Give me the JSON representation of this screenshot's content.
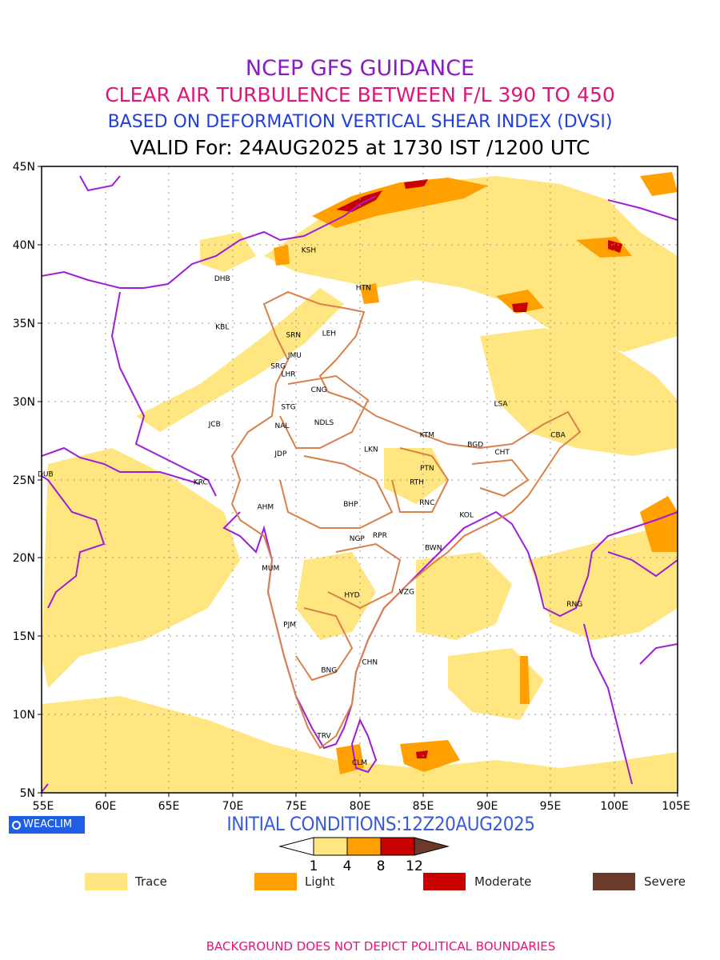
{
  "titles": {
    "line1": "NCEP GFS GUIDANCE",
    "line2": "CLEAR AIR TURBULENCE BETWEEN F/L 390 TO 450",
    "line3": "BASED ON DEFORMATION VERTICAL SHEAR INDEX (DVSI)",
    "line4": "VALID For: 24AUG2025 at 1730 IST /1200 UTC"
  },
  "axes": {
    "lat_labels": [
      "45N",
      "40N",
      "35N",
      "30N",
      "25N",
      "20N",
      "15N",
      "10N",
      "5N"
    ],
    "lon_labels": [
      "55E",
      "60E",
      "65E",
      "70E",
      "75E",
      "80E",
      "85E",
      "90E",
      "95E",
      "100E",
      "105E"
    ]
  },
  "stations": [
    {
      "code": "DHB",
      "lon": 69.2,
      "lat": 37.7
    },
    {
      "code": "KSH",
      "lon": 76.0,
      "lat": 39.5
    },
    {
      "code": "HTN",
      "lon": 80.3,
      "lat": 37.1
    },
    {
      "code": "KBL",
      "lon": 69.2,
      "lat": 34.6
    },
    {
      "code": "SRN",
      "lon": 74.8,
      "lat": 34.1
    },
    {
      "code": "LEH",
      "lon": 77.6,
      "lat": 34.2
    },
    {
      "code": "JMU",
      "lon": 74.9,
      "lat": 32.8
    },
    {
      "code": "SRG",
      "lon": 73.6,
      "lat": 32.1
    },
    {
      "code": "LHR",
      "lon": 74.4,
      "lat": 31.6
    },
    {
      "code": "CNG",
      "lon": 76.8,
      "lat": 30.6
    },
    {
      "code": "STG",
      "lon": 74.4,
      "lat": 29.5
    },
    {
      "code": "LSA",
      "lon": 91.1,
      "lat": 29.7
    },
    {
      "code": "JCB",
      "lon": 68.6,
      "lat": 28.4
    },
    {
      "code": "NDLS",
      "lon": 77.2,
      "lat": 28.5
    },
    {
      "code": "NAL",
      "lon": 73.9,
      "lat": 28.3
    },
    {
      "code": "KTM",
      "lon": 85.3,
      "lat": 27.7
    },
    {
      "code": "CBA",
      "lon": 95.6,
      "lat": 27.7
    },
    {
      "code": "LKN",
      "lon": 80.9,
      "lat": 26.8
    },
    {
      "code": "BGD",
      "lon": 89.1,
      "lat": 27.1
    },
    {
      "code": "CHT",
      "lon": 91.2,
      "lat": 26.6
    },
    {
      "code": "JDP",
      "lon": 73.8,
      "lat": 26.5
    },
    {
      "code": "DUB",
      "lon": 55.3,
      "lat": 25.2
    },
    {
      "code": "PTN",
      "lon": 85.3,
      "lat": 25.6
    },
    {
      "code": "KRC",
      "lon": 67.5,
      "lat": 24.7
    },
    {
      "code": "RTH",
      "lon": 84.5,
      "lat": 24.7
    },
    {
      "code": "BHP",
      "lon": 79.3,
      "lat": 23.3
    },
    {
      "code": "AHM",
      "lon": 72.6,
      "lat": 23.1
    },
    {
      "code": "RNC",
      "lon": 85.3,
      "lat": 23.4
    },
    {
      "code": "KOL",
      "lon": 88.4,
      "lat": 22.6
    },
    {
      "code": "NGP",
      "lon": 79.8,
      "lat": 21.1
    },
    {
      "code": "RPR",
      "lon": 81.6,
      "lat": 21.3
    },
    {
      "code": "BWN",
      "lon": 85.8,
      "lat": 20.5
    },
    {
      "code": "MUM",
      "lon": 73.0,
      "lat": 19.2
    },
    {
      "code": "HYD",
      "lon": 79.4,
      "lat": 17.5
    },
    {
      "code": "VZG",
      "lon": 83.7,
      "lat": 17.7
    },
    {
      "code": "RNG",
      "lon": 96.9,
      "lat": 16.9
    },
    {
      "code": "PJM",
      "lon": 74.5,
      "lat": 15.6
    },
    {
      "code": "CHN",
      "lon": 80.8,
      "lat": 13.2
    },
    {
      "code": "BNG",
      "lon": 77.6,
      "lat": 12.7
    },
    {
      "code": "TRV",
      "lon": 77.2,
      "lat": 8.5
    },
    {
      "code": "CLM",
      "lon": 80.0,
      "lat": 6.8
    }
  ],
  "colorbar": {
    "ticks": [
      "1",
      "4",
      "8",
      "12"
    ],
    "colors": [
      "#ffe680",
      "#ffa000",
      "#c80000",
      "#6b3a2a"
    ]
  },
  "legend": [
    {
      "label": "Trace",
      "color": "#ffe680"
    },
    {
      "label": "Light",
      "color": "#ffa000"
    },
    {
      "label": "Moderate",
      "color": "#c80000"
    },
    {
      "label": "Severe",
      "color": "#6b3a2a"
    }
  ],
  "badge_text": "WEACLIM",
  "initial_conditions": "INITIAL CONDITIONS:12Z20AUG2025",
  "footer": "BACKGROUND DOES NOT DEPICT POLITICAL BOUNDARIES",
  "colors": {
    "boundary_purple": "#9c1fd6",
    "india_boundary": "#d9804a",
    "grid": "#9a9a9a"
  }
}
